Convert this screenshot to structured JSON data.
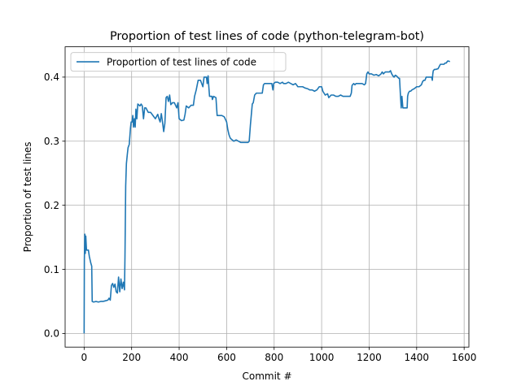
{
  "chart_data": {
    "type": "line",
    "title": "Proportion of test lines of code (python-telegram-bot)",
    "xlabel": "Commit #",
    "ylabel": "Proportion of test lines",
    "xlim": [
      -80,
      1620
    ],
    "ylim": [
      -0.0213,
      0.4473
    ],
    "xticks": [
      0,
      200,
      400,
      600,
      800,
      1000,
      1200,
      1400,
      1600
    ],
    "xtick_labels": [
      "0",
      "200",
      "400",
      "600",
      "800",
      "1000",
      "1200",
      "1400",
      "1600"
    ],
    "yticks": [
      0.0,
      0.1,
      0.2,
      0.3,
      0.4
    ],
    "ytick_labels": [
      "0.0",
      "0.1",
      "0.2",
      "0.3",
      "0.4"
    ],
    "grid": true,
    "legend_position": "upper-left",
    "series": [
      {
        "name": "Proportion of test lines of code",
        "color": "#1f77b4",
        "points": [
          [
            0,
            0.0
          ],
          [
            1,
            0.115
          ],
          [
            3,
            0.155
          ],
          [
            5,
            0.125
          ],
          [
            7,
            0.152
          ],
          [
            10,
            0.13
          ],
          [
            13,
            0.13
          ],
          [
            18,
            0.13
          ],
          [
            22,
            0.12
          ],
          [
            28,
            0.11
          ],
          [
            32,
            0.105
          ],
          [
            34,
            0.05
          ],
          [
            40,
            0.049
          ],
          [
            50,
            0.05
          ],
          [
            60,
            0.049
          ],
          [
            70,
            0.05
          ],
          [
            80,
            0.05
          ],
          [
            90,
            0.051
          ],
          [
            100,
            0.052
          ],
          [
            105,
            0.055
          ],
          [
            110,
            0.052
          ],
          [
            115,
            0.075
          ],
          [
            120,
            0.078
          ],
          [
            125,
            0.072
          ],
          [
            130,
            0.077
          ],
          [
            135,
            0.065
          ],
          [
            140,
            0.063
          ],
          [
            145,
            0.088
          ],
          [
            150,
            0.065
          ],
          [
            155,
            0.085
          ],
          [
            160,
            0.07
          ],
          [
            165,
            0.08
          ],
          [
            170,
            0.068
          ],
          [
            172,
            0.12
          ],
          [
            175,
            0.23
          ],
          [
            178,
            0.265
          ],
          [
            182,
            0.28
          ],
          [
            185,
            0.29
          ],
          [
            190,
            0.295
          ],
          [
            195,
            0.32
          ],
          [
            198,
            0.33
          ],
          [
            202,
            0.33
          ],
          [
            205,
            0.34
          ],
          [
            208,
            0.322
          ],
          [
            212,
            0.335
          ],
          [
            215,
            0.322
          ],
          [
            218,
            0.35
          ],
          [
            222,
            0.335
          ],
          [
            226,
            0.358
          ],
          [
            235,
            0.355
          ],
          [
            240,
            0.358
          ],
          [
            245,
            0.355
          ],
          [
            250,
            0.335
          ],
          [
            255,
            0.352
          ],
          [
            260,
            0.352
          ],
          [
            270,
            0.345
          ],
          [
            280,
            0.345
          ],
          [
            290,
            0.34
          ],
          [
            300,
            0.335
          ],
          [
            310,
            0.342
          ],
          [
            315,
            0.335
          ],
          [
            320,
            0.33
          ],
          [
            325,
            0.343
          ],
          [
            330,
            0.33
          ],
          [
            335,
            0.315
          ],
          [
            340,
            0.328
          ],
          [
            345,
            0.368
          ],
          [
            350,
            0.37
          ],
          [
            355,
            0.362
          ],
          [
            360,
            0.372
          ],
          [
            365,
            0.357
          ],
          [
            372,
            0.36
          ],
          [
            380,
            0.36
          ],
          [
            390,
            0.352
          ],
          [
            395,
            0.36
          ],
          [
            400,
            0.335
          ],
          [
            410,
            0.332
          ],
          [
            420,
            0.333
          ],
          [
            425,
            0.342
          ],
          [
            430,
            0.355
          ],
          [
            440,
            0.352
          ],
          [
            450,
            0.356
          ],
          [
            460,
            0.356
          ],
          [
            465,
            0.37
          ],
          [
            472,
            0.38
          ],
          [
            480,
            0.395
          ],
          [
            490,
            0.395
          ],
          [
            500,
            0.385
          ],
          [
            505,
            0.4
          ],
          [
            510,
            0.4
          ],
          [
            515,
            0.4
          ],
          [
            518,
            0.39
          ],
          [
            522,
            0.402
          ],
          [
            525,
            0.385
          ],
          [
            528,
            0.37
          ],
          [
            532,
            0.37
          ],
          [
            538,
            0.37
          ],
          [
            540,
            0.365
          ],
          [
            545,
            0.37
          ],
          [
            555,
            0.368
          ],
          [
            560,
            0.34
          ],
          [
            570,
            0.34
          ],
          [
            580,
            0.34
          ],
          [
            590,
            0.338
          ],
          [
            600,
            0.33
          ],
          [
            605,
            0.318
          ],
          [
            610,
            0.31
          ],
          [
            615,
            0.305
          ],
          [
            620,
            0.303
          ],
          [
            630,
            0.3
          ],
          [
            640,
            0.302
          ],
          [
            650,
            0.3
          ],
          [
            660,
            0.298
          ],
          [
            670,
            0.298
          ],
          [
            680,
            0.298
          ],
          [
            690,
            0.298
          ],
          [
            695,
            0.3
          ],
          [
            700,
            0.325
          ],
          [
            708,
            0.358
          ],
          [
            712,
            0.36
          ],
          [
            718,
            0.372
          ],
          [
            725,
            0.375
          ],
          [
            730,
            0.375
          ],
          [
            740,
            0.375
          ],
          [
            750,
            0.375
          ],
          [
            755,
            0.388
          ],
          [
            760,
            0.39
          ],
          [
            770,
            0.39
          ],
          [
            780,
            0.39
          ],
          [
            790,
            0.39
          ],
          [
            795,
            0.38
          ],
          [
            798,
            0.39
          ],
          [
            805,
            0.392
          ],
          [
            815,
            0.392
          ],
          [
            825,
            0.39
          ],
          [
            835,
            0.392
          ],
          [
            840,
            0.39
          ],
          [
            850,
            0.39
          ],
          [
            860,
            0.392
          ],
          [
            870,
            0.39
          ],
          [
            880,
            0.388
          ],
          [
            890,
            0.39
          ],
          [
            900,
            0.385
          ],
          [
            910,
            0.385
          ],
          [
            920,
            0.385
          ],
          [
            930,
            0.383
          ],
          [
            940,
            0.382
          ],
          [
            950,
            0.38
          ],
          [
            960,
            0.38
          ],
          [
            970,
            0.378
          ],
          [
            980,
            0.38
          ],
          [
            990,
            0.385
          ],
          [
            1000,
            0.385
          ],
          [
            1005,
            0.378
          ],
          [
            1015,
            0.372
          ],
          [
            1025,
            0.374
          ],
          [
            1030,
            0.368
          ],
          [
            1040,
            0.372
          ],
          [
            1050,
            0.372
          ],
          [
            1060,
            0.37
          ],
          [
            1070,
            0.37
          ],
          [
            1080,
            0.372
          ],
          [
            1090,
            0.37
          ],
          [
            1100,
            0.37
          ],
          [
            1110,
            0.37
          ],
          [
            1120,
            0.37
          ],
          [
            1125,
            0.375
          ],
          [
            1128,
            0.387
          ],
          [
            1135,
            0.39
          ],
          [
            1140,
            0.388
          ],
          [
            1145,
            0.39
          ],
          [
            1150,
            0.39
          ],
          [
            1160,
            0.39
          ],
          [
            1170,
            0.39
          ],
          [
            1180,
            0.388
          ],
          [
            1185,
            0.39
          ],
          [
            1190,
            0.405
          ],
          [
            1195,
            0.408
          ],
          [
            1200,
            0.405
          ],
          [
            1210,
            0.405
          ],
          [
            1220,
            0.403
          ],
          [
            1230,
            0.404
          ],
          [
            1240,
            0.402
          ],
          [
            1250,
            0.405
          ],
          [
            1255,
            0.408
          ],
          [
            1260,
            0.405
          ],
          [
            1268,
            0.408
          ],
          [
            1275,
            0.408
          ],
          [
            1285,
            0.408
          ],
          [
            1290,
            0.41
          ],
          [
            1295,
            0.405
          ],
          [
            1300,
            0.402
          ],
          [
            1305,
            0.4
          ],
          [
            1310,
            0.403
          ],
          [
            1315,
            0.402
          ],
          [
            1320,
            0.4
          ],
          [
            1325,
            0.398
          ],
          [
            1328,
            0.398
          ],
          [
            1332,
            0.37
          ],
          [
            1335,
            0.352
          ],
          [
            1338,
            0.37
          ],
          [
            1342,
            0.352
          ],
          [
            1345,
            0.352
          ],
          [
            1350,
            0.352
          ],
          [
            1355,
            0.352
          ],
          [
            1360,
            0.352
          ],
          [
            1362,
            0.37
          ],
          [
            1365,
            0.375
          ],
          [
            1370,
            0.378
          ],
          [
            1375,
            0.378
          ],
          [
            1380,
            0.38
          ],
          [
            1390,
            0.382
          ],
          [
            1400,
            0.385
          ],
          [
            1410,
            0.385
          ],
          [
            1420,
            0.388
          ],
          [
            1425,
            0.393
          ],
          [
            1430,
            0.395
          ],
          [
            1435,
            0.395
          ],
          [
            1440,
            0.4
          ],
          [
            1450,
            0.4
          ],
          [
            1460,
            0.4
          ],
          [
            1463,
            0.4
          ],
          [
            1466,
            0.395
          ],
          [
            1468,
            0.405
          ],
          [
            1470,
            0.41
          ],
          [
            1475,
            0.412
          ],
          [
            1480,
            0.412
          ],
          [
            1490,
            0.413
          ],
          [
            1500,
            0.42
          ],
          [
            1510,
            0.42
          ],
          [
            1515,
            0.42
          ],
          [
            1520,
            0.422
          ],
          [
            1525,
            0.422
          ],
          [
            1530,
            0.425
          ],
          [
            1535,
            0.425
          ],
          [
            1540,
            0.424
          ]
        ]
      }
    ]
  }
}
